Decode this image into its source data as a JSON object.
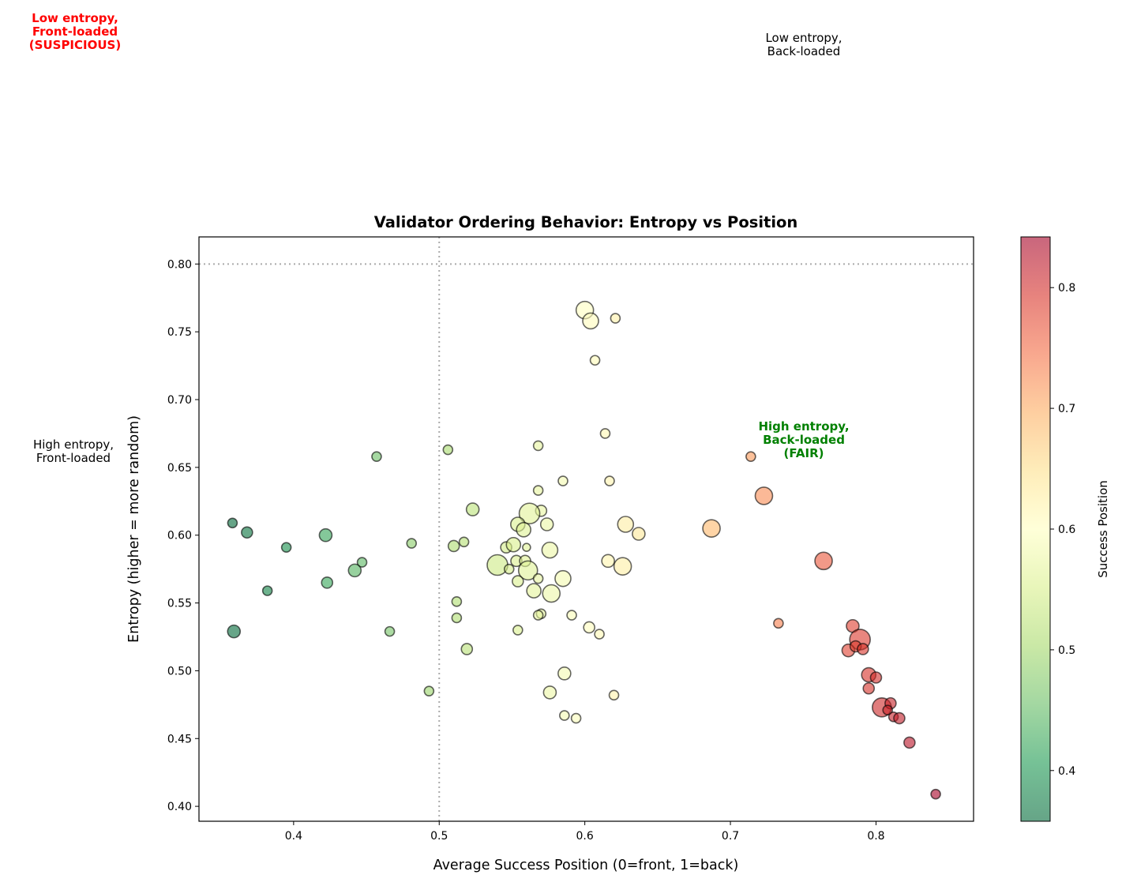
{
  "chart_data": {
    "type": "scatter",
    "title": "Validator Ordering Behavior: Entropy vs Position",
    "xlabel": "Average Success Position (0=front, 1=back)",
    "ylabel": "Entropy (higher = more random)",
    "xlim": [
      0.335,
      0.867
    ],
    "ylim": [
      0.389,
      0.82
    ],
    "xticks": [
      0.4,
      0.5,
      0.6,
      0.7,
      0.8
    ],
    "xtick_labels": [
      "0.4",
      "0.5",
      "0.6",
      "0.7",
      "0.8"
    ],
    "yticks": [
      0.4,
      0.45,
      0.5,
      0.55,
      0.6,
      0.65,
      0.7,
      0.75,
      0.8
    ],
    "ytick_labels": [
      "0.40",
      "0.45",
      "0.50",
      "0.55",
      "0.60",
      "0.65",
      "0.70",
      "0.75",
      "0.80"
    ],
    "grid": false,
    "reference_lines": {
      "horizontal_y": 0.8,
      "vertical_x": 0.5,
      "style": "dotted",
      "color": "#aaaaaa"
    },
    "colorbar": {
      "label": "Success Position",
      "colormap": "RdYlGn_r",
      "range": [
        0.358,
        0.842
      ],
      "ticks": [
        0.4,
        0.5,
        0.6,
        0.7,
        0.8
      ],
      "tick_labels": [
        "0.4",
        "0.5",
        "0.6",
        "0.7",
        "0.8"
      ]
    },
    "marker_alpha": 0.6,
    "annotations": [
      {
        "lines": [
          "Low entropy,",
          "Front-loaded",
          "(SUSPICIOUS)"
        ],
        "color": "#ff0000",
        "bold": true
      },
      {
        "lines": [
          "Low entropy,",
          "Back-loaded"
        ],
        "color": "#000000",
        "bold": false
      },
      {
        "lines": [
          "High entropy,",
          "Front-loaded"
        ],
        "color": "#000000",
        "bold": false
      },
      {
        "lines": [
          "High entropy,",
          "Back-loaded",
          "(FAIR)"
        ],
        "color": "#008000",
        "bold": true
      }
    ],
    "points": [
      {
        "x": 0.6,
        "y": 0.766,
        "size": 121
      },
      {
        "x": 0.604,
        "y": 0.758,
        "size": 100
      },
      {
        "x": 0.621,
        "y": 0.76,
        "size": 36
      },
      {
        "x": 0.607,
        "y": 0.729,
        "size": 36
      },
      {
        "x": 0.614,
        "y": 0.675,
        "size": 36
      },
      {
        "x": 0.568,
        "y": 0.666,
        "size": 36
      },
      {
        "x": 0.506,
        "y": 0.663,
        "size": 36
      },
      {
        "x": 0.457,
        "y": 0.658,
        "size": 36
      },
      {
        "x": 0.714,
        "y": 0.658,
        "size": 36
      },
      {
        "x": 0.585,
        "y": 0.64,
        "size": 36
      },
      {
        "x": 0.617,
        "y": 0.64,
        "size": 36
      },
      {
        "x": 0.568,
        "y": 0.633,
        "size": 36
      },
      {
        "x": 0.723,
        "y": 0.629,
        "size": 121
      },
      {
        "x": 0.523,
        "y": 0.619,
        "size": 64
      },
      {
        "x": 0.57,
        "y": 0.618,
        "size": 49
      },
      {
        "x": 0.562,
        "y": 0.616,
        "size": 169
      },
      {
        "x": 0.554,
        "y": 0.608,
        "size": 81
      },
      {
        "x": 0.574,
        "y": 0.608,
        "size": 64
      },
      {
        "x": 0.628,
        "y": 0.608,
        "size": 100
      },
      {
        "x": 0.687,
        "y": 0.605,
        "size": 121
      },
      {
        "x": 0.558,
        "y": 0.604,
        "size": 81
      },
      {
        "x": 0.637,
        "y": 0.601,
        "size": 64
      },
      {
        "x": 0.358,
        "y": 0.609,
        "size": 36
      },
      {
        "x": 0.368,
        "y": 0.602,
        "size": 49
      },
      {
        "x": 0.422,
        "y": 0.6,
        "size": 64
      },
      {
        "x": 0.395,
        "y": 0.591,
        "size": 36
      },
      {
        "x": 0.481,
        "y": 0.594,
        "size": 36
      },
      {
        "x": 0.51,
        "y": 0.592,
        "size": 49
      },
      {
        "x": 0.517,
        "y": 0.595,
        "size": 36
      },
      {
        "x": 0.546,
        "y": 0.591,
        "size": 49
      },
      {
        "x": 0.551,
        "y": 0.593,
        "size": 81
      },
      {
        "x": 0.56,
        "y": 0.591,
        "size": 25
      },
      {
        "x": 0.576,
        "y": 0.589,
        "size": 100
      },
      {
        "x": 0.764,
        "y": 0.581,
        "size": 121
      },
      {
        "x": 0.616,
        "y": 0.581,
        "size": 64
      },
      {
        "x": 0.626,
        "y": 0.577,
        "size": 121
      },
      {
        "x": 0.54,
        "y": 0.578,
        "size": 169
      },
      {
        "x": 0.553,
        "y": 0.581,
        "size": 49
      },
      {
        "x": 0.559,
        "y": 0.581,
        "size": 49
      },
      {
        "x": 0.447,
        "y": 0.58,
        "size": 36
      },
      {
        "x": 0.442,
        "y": 0.574,
        "size": 64
      },
      {
        "x": 0.548,
        "y": 0.575,
        "size": 36
      },
      {
        "x": 0.561,
        "y": 0.574,
        "size": 144
      },
      {
        "x": 0.585,
        "y": 0.568,
        "size": 100
      },
      {
        "x": 0.568,
        "y": 0.568,
        "size": 36
      },
      {
        "x": 0.554,
        "y": 0.566,
        "size": 49
      },
      {
        "x": 0.423,
        "y": 0.565,
        "size": 49
      },
      {
        "x": 0.382,
        "y": 0.559,
        "size": 36
      },
      {
        "x": 0.565,
        "y": 0.559,
        "size": 81
      },
      {
        "x": 0.577,
        "y": 0.557,
        "size": 121
      },
      {
        "x": 0.512,
        "y": 0.551,
        "size": 36
      },
      {
        "x": 0.57,
        "y": 0.542,
        "size": 36
      },
      {
        "x": 0.591,
        "y": 0.541,
        "size": 36
      },
      {
        "x": 0.568,
        "y": 0.541,
        "size": 36
      },
      {
        "x": 0.512,
        "y": 0.539,
        "size": 36
      },
      {
        "x": 0.733,
        "y": 0.535,
        "size": 36
      },
      {
        "x": 0.359,
        "y": 0.529,
        "size": 64
      },
      {
        "x": 0.466,
        "y": 0.529,
        "size": 36
      },
      {
        "x": 0.554,
        "y": 0.53,
        "size": 36
      },
      {
        "x": 0.603,
        "y": 0.532,
        "size": 49
      },
      {
        "x": 0.61,
        "y": 0.527,
        "size": 36
      },
      {
        "x": 0.784,
        "y": 0.533,
        "size": 64
      },
      {
        "x": 0.789,
        "y": 0.523,
        "size": 169
      },
      {
        "x": 0.781,
        "y": 0.515,
        "size": 64
      },
      {
        "x": 0.786,
        "y": 0.518,
        "size": 49
      },
      {
        "x": 0.791,
        "y": 0.516,
        "size": 49
      },
      {
        "x": 0.519,
        "y": 0.516,
        "size": 49
      },
      {
        "x": 0.586,
        "y": 0.498,
        "size": 64
      },
      {
        "x": 0.795,
        "y": 0.497,
        "size": 81
      },
      {
        "x": 0.8,
        "y": 0.495,
        "size": 49
      },
      {
        "x": 0.795,
        "y": 0.487,
        "size": 49
      },
      {
        "x": 0.493,
        "y": 0.485,
        "size": 36
      },
      {
        "x": 0.576,
        "y": 0.484,
        "size": 64
      },
      {
        "x": 0.62,
        "y": 0.482,
        "size": 36
      },
      {
        "x": 0.804,
        "y": 0.473,
        "size": 144
      },
      {
        "x": 0.81,
        "y": 0.476,
        "size": 49
      },
      {
        "x": 0.808,
        "y": 0.471,
        "size": 36
      },
      {
        "x": 0.812,
        "y": 0.466,
        "size": 36
      },
      {
        "x": 0.816,
        "y": 0.465,
        "size": 49
      },
      {
        "x": 0.586,
        "y": 0.467,
        "size": 36
      },
      {
        "x": 0.594,
        "y": 0.465,
        "size": 36
      },
      {
        "x": 0.823,
        "y": 0.447,
        "size": 49
      },
      {
        "x": 0.841,
        "y": 0.409,
        "size": 36
      }
    ]
  }
}
